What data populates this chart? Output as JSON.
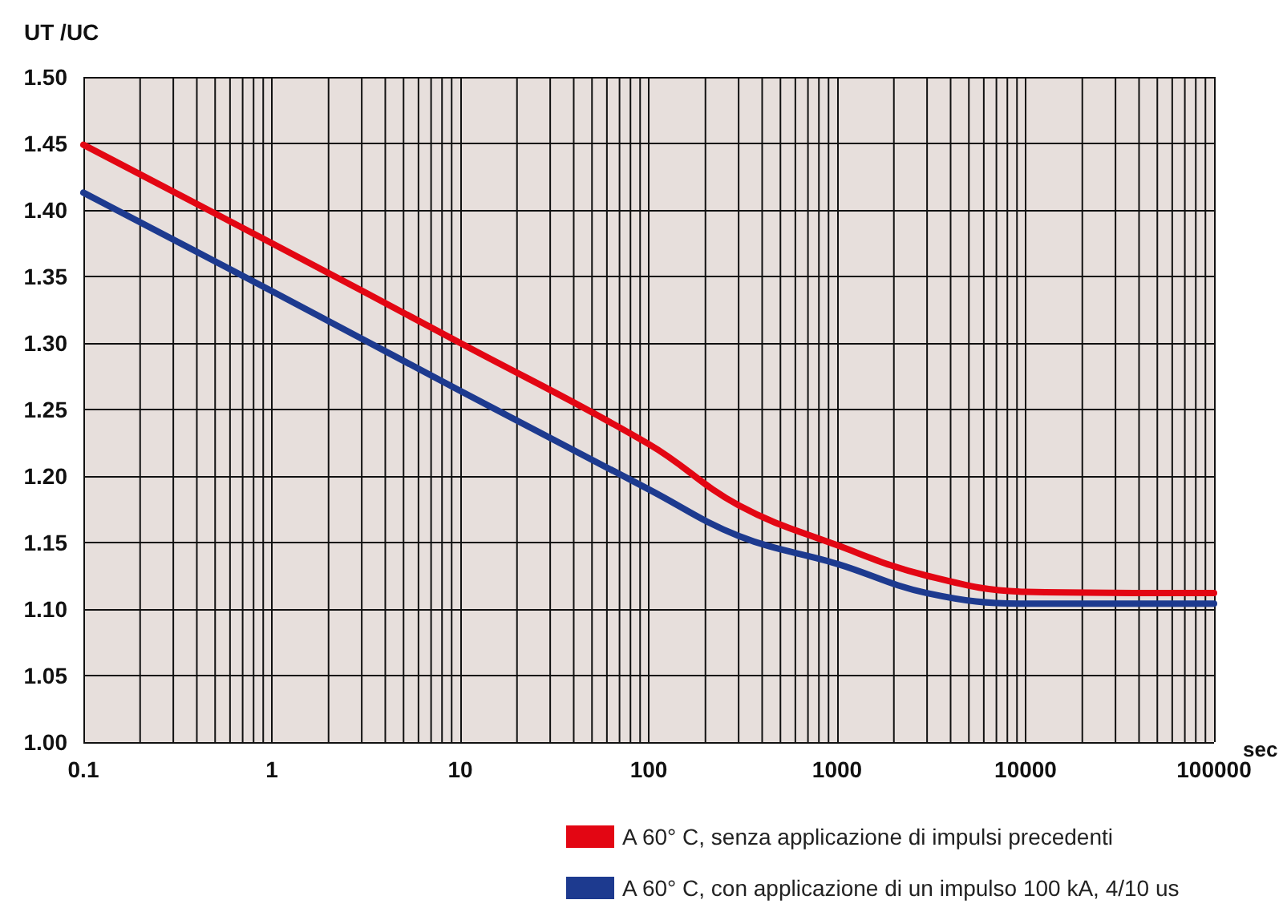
{
  "chart_data": {
    "type": "line",
    "xlabel": "sec",
    "ylabel": "UT /UC",
    "log": "x",
    "grid": true,
    "legend": "bottom right",
    "line_style": "solid",
    "marker": "none",
    "x": [
      0.1,
      1,
      10,
      100,
      300,
      1000,
      3000,
      10000,
      100000
    ],
    "xlim": [
      0.1,
      100000
    ],
    "xticks": [
      0.1,
      1,
      10,
      100,
      1000,
      10000,
      100000
    ],
    "ylim": [
      1.0,
      1.5
    ],
    "yticks": [
      {
        "value": 1.0,
        "label": "1.00"
      },
      {
        "value": 1.05,
        "label": "1.05"
      },
      {
        "value": 1.1,
        "label": "1.10"
      },
      {
        "value": 1.15,
        "label": "1.15"
      },
      {
        "value": 1.2,
        "label": "1.20"
      },
      {
        "value": 1.25,
        "label": "1.25"
      },
      {
        "value": 1.3,
        "label": "1.30"
      },
      {
        "value": 1.35,
        "label": "1.35"
      },
      {
        "value": 1.4,
        "label": "1.40"
      },
      {
        "value": 1.45,
        "label": "1.45"
      },
      {
        "value": 1.5,
        "label": "1.50"
      }
    ],
    "series": [
      {
        "name": "A 60° C, senza applicazione di impulsi precedenti",
        "color": "#e30613",
        "values": [
          1.449,
          1.375,
          1.3,
          1.224,
          1.178,
          1.148,
          1.125,
          1.113,
          1.112
        ]
      },
      {
        "name": "A 60° C, con applicazione di un impulso 100 kA, 4/10 us",
        "color": "#1d3a8f",
        "values": [
          1.413,
          1.339,
          1.264,
          1.19,
          1.155,
          1.134,
          1.112,
          1.104,
          1.104
        ]
      }
    ]
  }
}
